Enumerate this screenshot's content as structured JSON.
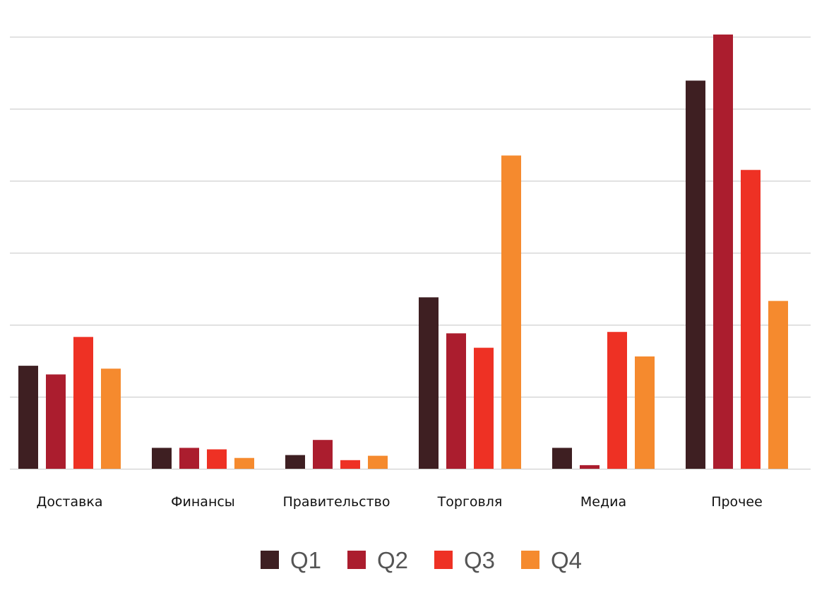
{
  "chart_data": {
    "type": "bar",
    "title": "",
    "xlabel": "",
    "ylabel": "",
    "ylim": [
      0,
      6
    ],
    "grid": true,
    "legend_position": "bottom",
    "categories": [
      "Доставка",
      "Финансы",
      "Правительство",
      "Торговля",
      "Медиа",
      "Прочее"
    ],
    "series": [
      {
        "name": "Q1",
        "color": "#3e1f22",
        "values": [
          1.43,
          0.29,
          0.19,
          2.38,
          0.29,
          5.39
        ]
      },
      {
        "name": "Q2",
        "color": "#ab1d2e",
        "values": [
          1.31,
          0.29,
          0.4,
          1.88,
          0.05,
          6.03
        ]
      },
      {
        "name": "Q3",
        "color": "#ee3124",
        "values": [
          1.83,
          0.27,
          0.12,
          1.68,
          1.9,
          4.15
        ]
      },
      {
        "name": "Q4",
        "color": "#f58a2e",
        "values": [
          1.39,
          0.15,
          0.18,
          4.35,
          1.56,
          2.33
        ]
      }
    ]
  }
}
